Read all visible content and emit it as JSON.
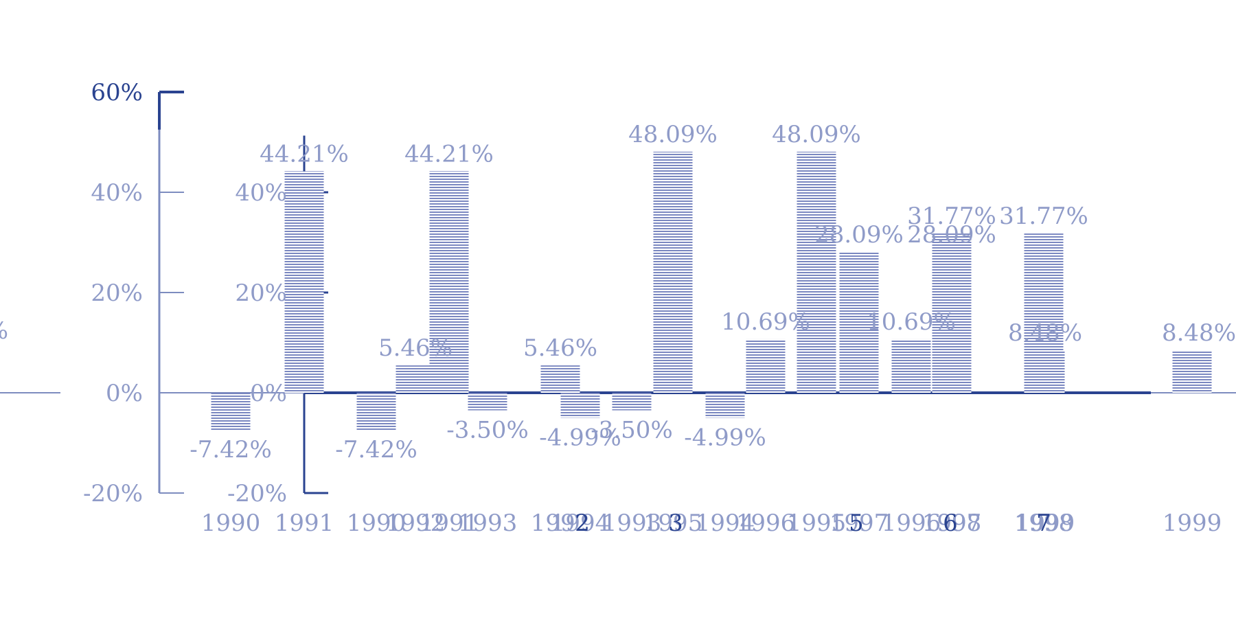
{
  "colors": {
    "axis_dark": "#2a4390",
    "axis_faded": "#7d8cbf",
    "text_dark": "#2a4390",
    "text_faded": "#8f9bc8",
    "bar_stripe": "#7a87c0"
  },
  "chart_data": {
    "type": "bar",
    "categories": [
      "1990",
      "1991",
      "1992",
      "1993",
      "1994",
      "1995",
      "1996",
      "1997",
      "1998",
      "1999"
    ],
    "values": [
      -7.42,
      44.21,
      5.46,
      -3.5,
      -4.99,
      48.09,
      10.69,
      28.09,
      31.77,
      8.48
    ],
    "value_labels": [
      "-7.42%",
      "44.21%",
      "5.46%",
      "-3.50%",
      "-4.99%",
      "48.09%",
      "10.69%",
      "28.09%",
      "31.77%",
      "8.48%"
    ],
    "y_ticks": [
      "-20%",
      "0%",
      "20%",
      "40%",
      "60%"
    ],
    "ylim": [
      -20,
      60
    ],
    "grid": false,
    "legend": "none",
    "title": "",
    "xlabel": "",
    "ylabel": "",
    "note": "image shows several overlapping, horizontally-shifted copies of the same bar chart"
  },
  "stray_labels": {
    "left_edge_fragment": "%",
    "x_fragment_a": "2",
    "x_fragment_b": "3",
    "x_fragment_c": "5",
    "x_fragment_d": "6",
    "x_fragment_e": "7"
  }
}
